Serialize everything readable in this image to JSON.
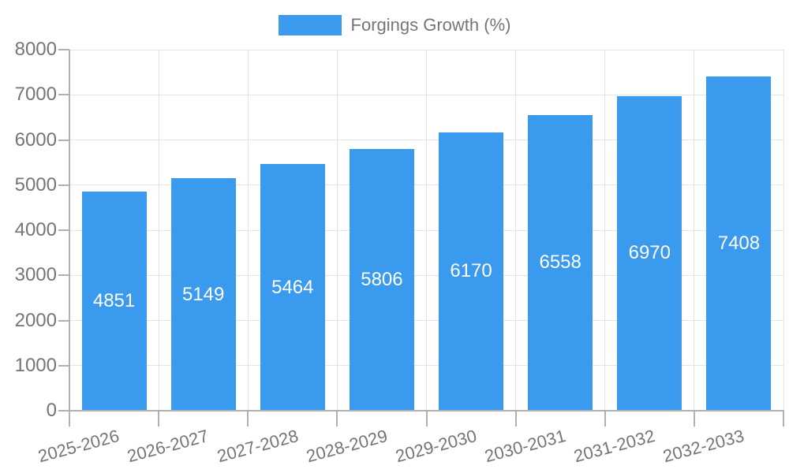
{
  "chart_data": {
    "type": "bar",
    "title": "Forgings Growth (%)",
    "legend_label": "Forgings Growth (%)",
    "legend_position": "top-center",
    "categories": [
      "2025-2026",
      "2026-2027",
      "2027-2028",
      "2028-2029",
      "2029-2030",
      "2030-2031",
      "2031-2032",
      "2032-2033"
    ],
    "values": [
      4851,
      5149,
      5464,
      5806,
      6170,
      6558,
      6970,
      7408
    ],
    "value_labels": [
      "4851",
      "5149",
      "5464",
      "5806",
      "6170",
      "6558",
      "6970",
      "7408"
    ],
    "xlabel": "",
    "ylabel": "",
    "ylim": [
      0,
      8000
    ],
    "yticks": [
      "0",
      "1000",
      "2000",
      "3000",
      "4000",
      "5000",
      "6000",
      "7000",
      "8000"
    ],
    "grid": true,
    "colors": {
      "bar": "#3a9aee",
      "grid": "#e3e3e3",
      "axis": "#b0b0b0",
      "text": "#757575",
      "value_label": "#ffffff",
      "background": "#ffffff"
    }
  }
}
